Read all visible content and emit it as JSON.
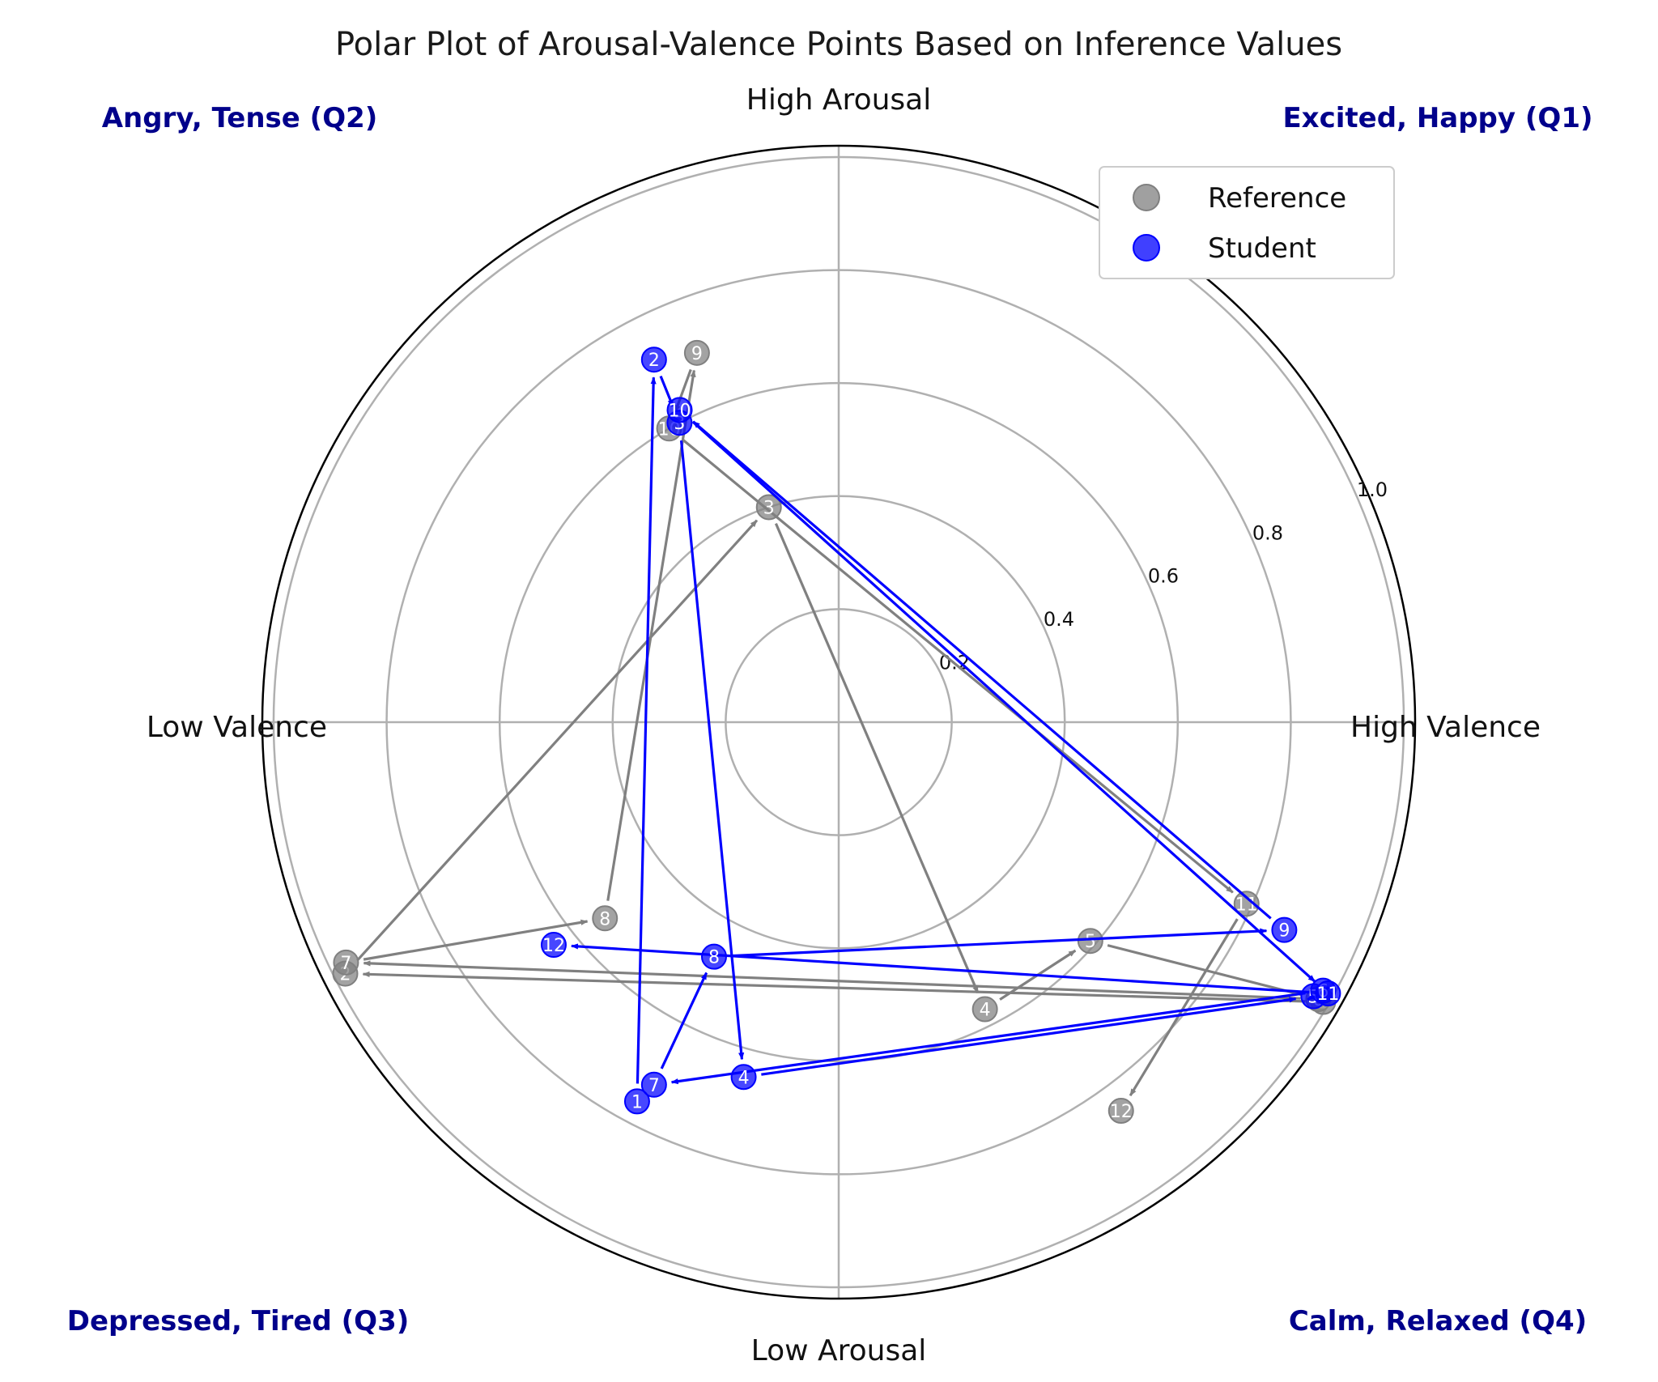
{
  "chart_data": {
    "type": "scatter",
    "projection": "polar",
    "title": "Polar Plot of Arousal-Valence Points Based on Inference Values",
    "axis_labels": {
      "top": "High Arousal",
      "bottom": "Low Arousal",
      "left": "Low Valence",
      "right": "High Valence"
    },
    "quadrant_labels": {
      "q1": "Excited, Happy (Q1)",
      "q2": "Angry, Tense (Q2)",
      "q3": "Depressed, Tired (Q3)",
      "q4": "Calm, Relaxed (Q4)"
    },
    "radial_ticks": [
      "0.2",
      "0.4",
      "0.6",
      "0.8",
      "1.0"
    ],
    "radial_tick_values": [
      0.2,
      0.4,
      0.6,
      0.8,
      1.0
    ],
    "rlim": [
      0,
      1.02
    ],
    "grid": true,
    "legend_position": "upper-right",
    "series": [
      {
        "name": "Reference",
        "color": "#808080",
        "points": [
          {
            "label": "1",
            "theta": 330,
            "r": 0.99
          },
          {
            "label": "2",
            "theta": 207,
            "r": 0.98
          },
          {
            "label": "3",
            "theta": 108,
            "r": 0.4
          },
          {
            "label": "4",
            "theta": 297,
            "r": 0.57
          },
          {
            "label": "5",
            "theta": 319,
            "r": 0.59
          },
          {
            "label": "6",
            "theta": 330,
            "r": 0.98
          },
          {
            "label": "7",
            "theta": 206,
            "r": 0.97
          },
          {
            "label": "8",
            "theta": 220,
            "r": 0.54
          },
          {
            "label": "9",
            "theta": 111,
            "r": 0.7
          },
          {
            "label": "10",
            "theta": 120,
            "r": 0.6
          },
          {
            "label": "11",
            "theta": 336,
            "r": 0.79
          },
          {
            "label": "12",
            "theta": 306,
            "r": 0.85
          }
        ]
      },
      {
        "name": "Student",
        "color": "#0000ff",
        "points": [
          {
            "label": "1",
            "theta": 242,
            "r": 0.76
          },
          {
            "label": "2",
            "theta": 117,
            "r": 0.72
          },
          {
            "label": "3",
            "theta": 118,
            "r": 0.6
          },
          {
            "label": "4",
            "theta": 255,
            "r": 0.65
          },
          {
            "label": "5",
            "theta": 330,
            "r": 0.97
          },
          {
            "label": "6",
            "theta": 331,
            "r": 0.98
          },
          {
            "label": "7",
            "theta": 243,
            "r": 0.72
          },
          {
            "label": "8",
            "theta": 242,
            "r": 0.47
          },
          {
            "label": "9",
            "theta": 335,
            "r": 0.87
          },
          {
            "label": "10",
            "theta": 117,
            "r": 0.62
          },
          {
            "label": "11",
            "theta": 331,
            "r": 0.99
          },
          {
            "label": "12",
            "theta": 218,
            "r": 0.64
          }
        ]
      }
    ]
  }
}
